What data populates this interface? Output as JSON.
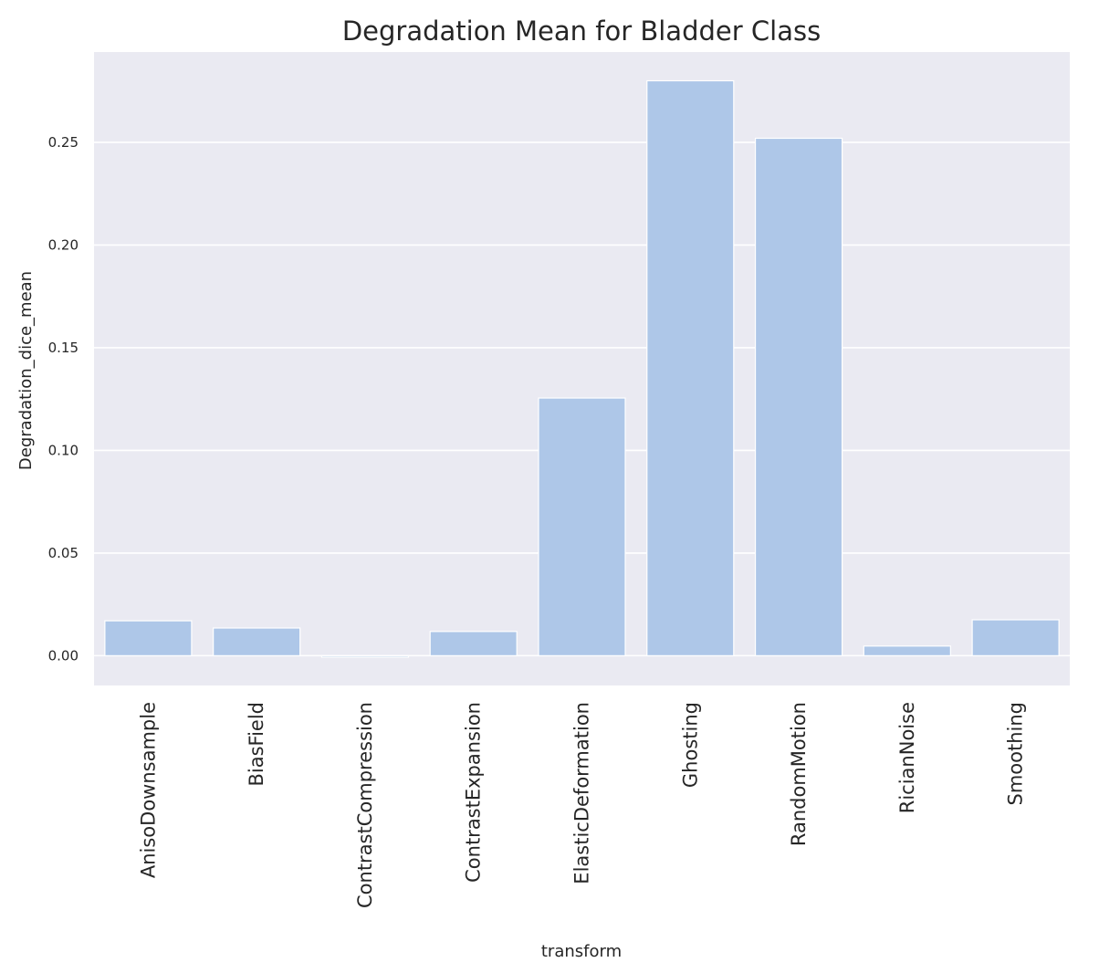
{
  "chart_data": {
    "type": "bar",
    "title": "Degradation Mean for Bladder Class",
    "xlabel": "transform",
    "ylabel": "Degradation_dice_mean",
    "categories": [
      "AnisoDownsample",
      "BiasField",
      "ContrastCompression",
      "ContrastExpansion",
      "ElasticDeformation",
      "Ghosting",
      "RandomMotion",
      "RicianNoise",
      "Smoothing"
    ],
    "values": [
      0.017,
      0.0135,
      -0.0007,
      0.0118,
      0.1255,
      0.28,
      0.252,
      0.0047,
      0.0175
    ],
    "ylim": [
      -0.0145,
      0.294
    ],
    "yticks": [
      0.0,
      0.05,
      0.1,
      0.15,
      0.2,
      0.25
    ],
    "ytick_labels": [
      "0.00",
      "0.05",
      "0.10",
      "0.15",
      "0.20",
      "0.25"
    ],
    "grid": true,
    "colors": {
      "bar": "#aec7e8",
      "plot_background": "#eaeaf2",
      "grid": "#ffffff",
      "text": "#262626"
    }
  }
}
